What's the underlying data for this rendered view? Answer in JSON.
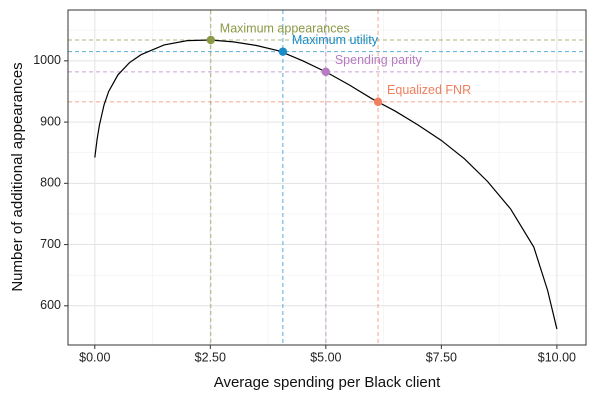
{
  "chart_data": {
    "type": "line",
    "x_label": "Average spending per Black client",
    "y_label": "Number of additional appearances",
    "xlim": [
      -0.58,
      10.63
    ],
    "ylim": [
      536,
      1083
    ],
    "xticks": [
      {
        "value": 0,
        "label": "$0.00"
      },
      {
        "value": 2.5,
        "label": "$2.50"
      },
      {
        "value": 5,
        "label": "$5.00"
      },
      {
        "value": 7.5,
        "label": "$7.50"
      },
      {
        "value": 10,
        "label": "$10.00"
      }
    ],
    "x_minor_ticks": [
      1.25,
      3.75,
      6.25,
      8.75
    ],
    "yticks": [
      600,
      700,
      800,
      900,
      1000
    ],
    "y_minor_ticks": [
      650,
      750,
      850,
      950,
      1050
    ],
    "grid": true,
    "series": [
      {
        "color": "#000000",
        "x": [
          0,
          0.05,
          0.1,
          0.2,
          0.3,
          0.5,
          0.75,
          1,
          1.5,
          2,
          2.5,
          3,
          3.5,
          4,
          4.5,
          5,
          5.5,
          6,
          6.5,
          7,
          7.5,
          8,
          8.5,
          9,
          9.5,
          9.8,
          10
        ],
        "values": [
          842,
          872,
          895,
          928,
          950,
          977,
          997,
          1010,
          1026,
          1033,
          1034,
          1031,
          1025,
          1016,
          1000,
          982,
          961,
          938,
          918,
          895,
          870,
          840,
          803,
          758,
          696,
          625,
          562
        ]
      }
    ],
    "highlights": [
      {
        "label": "Maximum appearances",
        "x": 2.51,
        "y": 1034,
        "color": "#8a9a45"
      },
      {
        "label": "Maximum utility",
        "x": 4.07,
        "y": 1015,
        "color": "#1a8cc8"
      },
      {
        "label": "Spending parity",
        "x": 5.0,
        "y": 982,
        "color": "#b67bc2"
      },
      {
        "label": "Equalized FNR",
        "x": 6.13,
        "y": 933,
        "color": "#f08060"
      }
    ]
  }
}
